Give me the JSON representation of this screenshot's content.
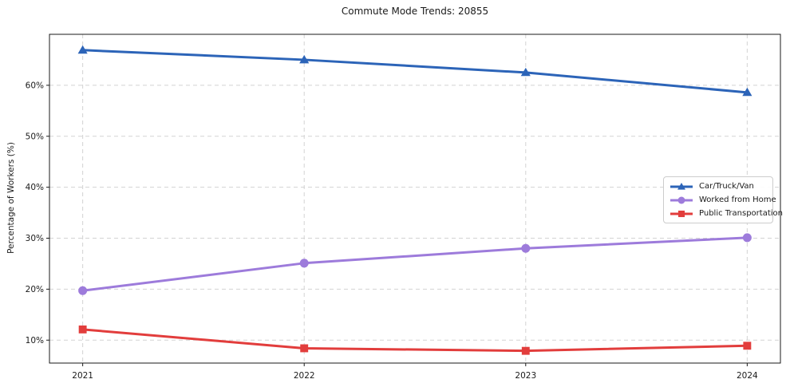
{
  "chart_data": {
    "type": "line",
    "title": "Commute Mode Trends: 20855",
    "xlabel": "",
    "ylabel": "Percentage of Workers (%)",
    "x": [
      2021,
      2022,
      2023,
      2024
    ],
    "categories": [
      "2021",
      "2022",
      "2023",
      "2024"
    ],
    "series": [
      {
        "name": "Car/Truck/Van",
        "color": "#2c64b8",
        "marker": "triangle-up",
        "values": [
          66.9,
          65.0,
          62.5,
          58.6
        ]
      },
      {
        "name": "Worked from Home",
        "color": "#9d7bdb",
        "marker": "circle",
        "values": [
          19.7,
          25.1,
          28.0,
          30.1
        ]
      },
      {
        "name": "Public Transportation",
        "color": "#e23d3c",
        "marker": "square",
        "values": [
          12.1,
          8.4,
          7.9,
          8.9
        ]
      }
    ],
    "yticks": [
      10,
      20,
      30,
      40,
      50,
      60
    ],
    "ytick_labels": [
      "10%",
      "20%",
      "30%",
      "40%",
      "50%",
      "60%"
    ],
    "xlim": [
      2020.85,
      2024.15
    ],
    "ylim": [
      5.5,
      70
    ],
    "grid": true,
    "grid_style": "dashed",
    "grid_color": "#d3d3d3",
    "axis_color": "#1a1a1a",
    "tick_label_color": "#1a1a1a",
    "background": "#ffffff",
    "legend_position": "center right"
  }
}
